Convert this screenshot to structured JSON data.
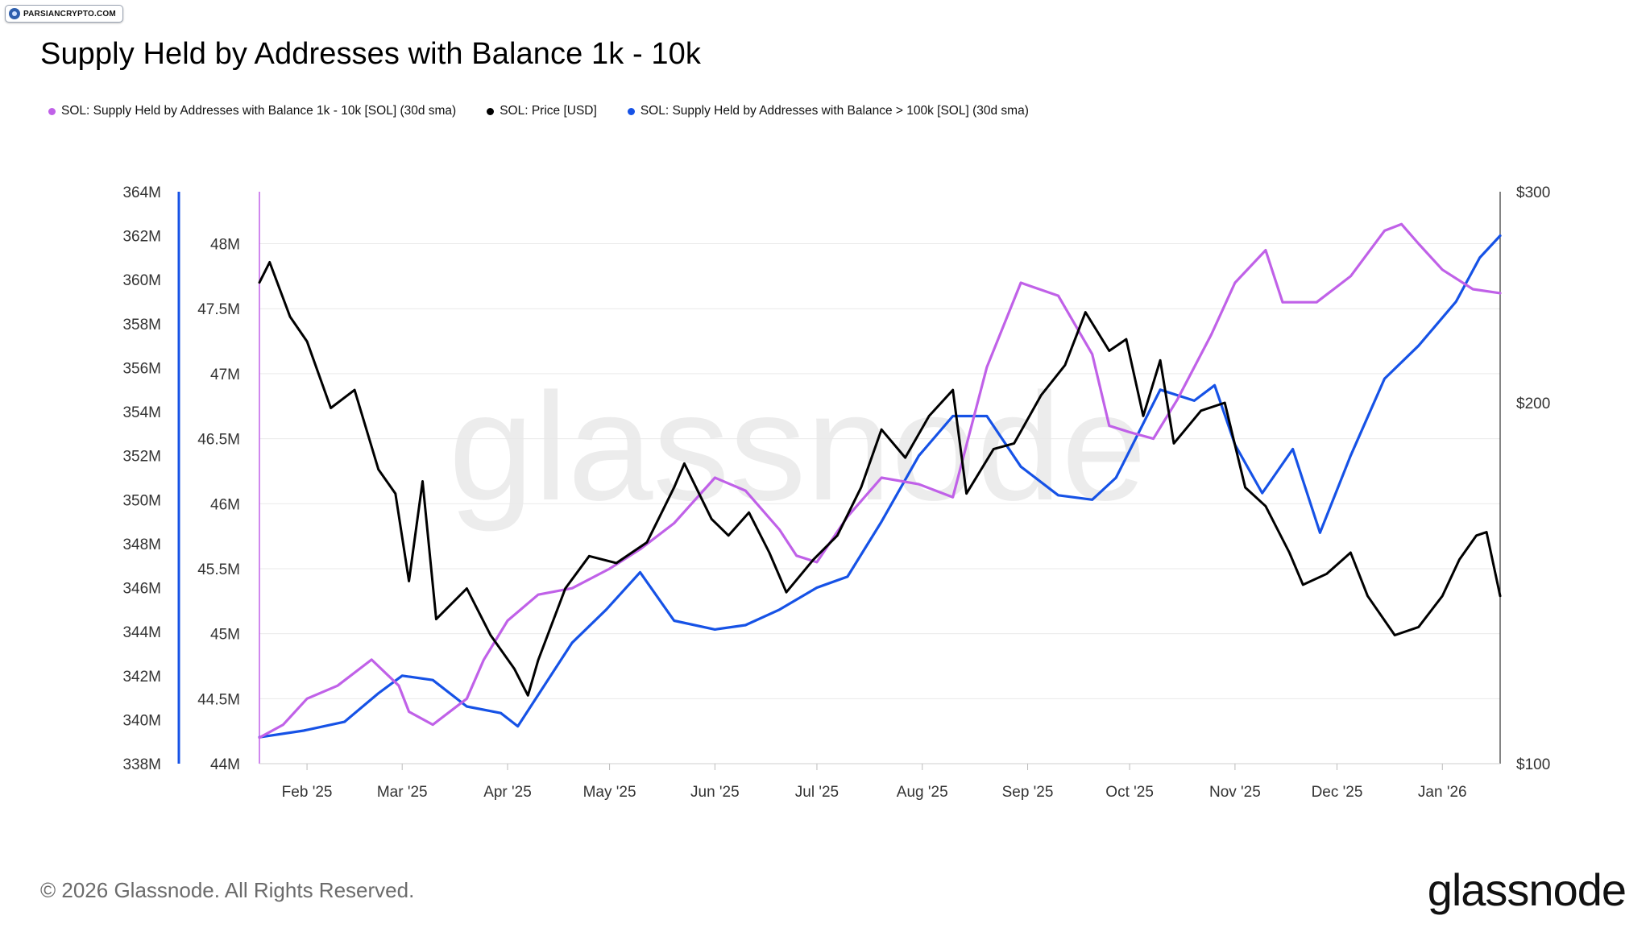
{
  "badge": {
    "text": "PARSIANCRYPTO.COM"
  },
  "title": "Supply Held by Addresses with Balance 1k - 10k",
  "legend": [
    {
      "label": "SOL: Supply Held by Addresses with Balance 1k - 10k [SOL] (30d sma)",
      "color": "#c061e8"
    },
    {
      "label": "SOL: Price [USD]",
      "color": "#000000"
    },
    {
      "label": "SOL: Supply Held by Addresses with Balance > 100k [SOL] (30d sma)",
      "color": "#1652e6"
    }
  ],
  "watermark": "glassnode",
  "footer": "© 2026 Glassnode. All Rights Reserved.",
  "brand": "glassnode",
  "chart_data": {
    "type": "line",
    "title": "Supply Held by Addresses with Balance 1k - 10k",
    "x_tick_labels": [
      "Feb '25",
      "Mar '25",
      "Apr '25",
      "May '25",
      "Jun '25",
      "Jul '25",
      "Aug '25",
      "Sep '25",
      "Oct '25",
      "Nov '25",
      "Dec '25",
      "Jan '26"
    ],
    "axes": {
      "left_outer": {
        "series": "SOL: Supply Held by Addresses with Balance > 100k [SOL] (30d sma)",
        "range": [
          338,
          364
        ],
        "ticks": [
          "338M",
          "340M",
          "342M",
          "344M",
          "346M",
          "348M",
          "350M",
          "352M",
          "354M",
          "356M",
          "358M",
          "360M",
          "362M",
          "364M"
        ],
        "color": "#1652e6"
      },
      "left_inner": {
        "series": "SOL: Supply Held by Addresses with Balance 1k - 10k [SOL] (30d sma)",
        "range": [
          44,
          48.4
        ],
        "ticks": [
          "44M",
          "44.5M",
          "45M",
          "45.5M",
          "46M",
          "46.5M",
          "47M",
          "47.5M",
          "48M"
        ],
        "color": "#c061e8"
      },
      "right": {
        "series": "SOL: Price [USD]",
        "scale": "log",
        "range": [
          100,
          300
        ],
        "ticks": [
          "$100",
          "$200",
          "$300"
        ]
      }
    },
    "grid": "horizontal",
    "series": [
      {
        "name": "SOL: Supply Held by Addresses with Balance 1k - 10k [SOL] (30d sma)",
        "axis": "left_inner",
        "color": "#c061e8",
        "unit": "M SOL",
        "x": [
          "2025-01-18",
          "2025-01-25",
          "2025-02-01",
          "2025-02-10",
          "2025-02-20",
          "2025-02-28",
          "2025-03-03",
          "2025-03-10",
          "2025-03-20",
          "2025-03-25",
          "2025-04-01",
          "2025-04-10",
          "2025-04-20",
          "2025-05-01",
          "2025-05-10",
          "2025-05-20",
          "2025-06-01",
          "2025-06-10",
          "2025-06-20",
          "2025-06-25",
          "2025-07-01",
          "2025-07-10",
          "2025-07-20",
          "2025-07-31",
          "2025-08-10",
          "2025-08-20",
          "2025-08-30",
          "2025-09-10",
          "2025-09-20",
          "2025-09-25",
          "2025-10-01",
          "2025-10-08",
          "2025-10-15",
          "2025-10-25",
          "2025-11-01",
          "2025-11-10",
          "2025-11-15",
          "2025-11-25",
          "2025-12-05",
          "2025-12-15",
          "2025-12-20",
          "2025-12-25",
          "2026-01-01",
          "2026-01-10",
          "2026-01-18"
        ],
        "values": [
          44.2,
          44.3,
          44.5,
          44.6,
          44.8,
          44.6,
          44.4,
          44.3,
          44.5,
          44.8,
          45.1,
          45.3,
          45.35,
          45.5,
          45.65,
          45.85,
          46.2,
          46.1,
          45.8,
          45.6,
          45.55,
          45.9,
          46.2,
          46.15,
          46.05,
          47.05,
          47.7,
          47.6,
          47.15,
          46.6,
          46.55,
          46.5,
          46.8,
          47.3,
          47.7,
          47.95,
          47.55,
          47.55,
          47.75,
          48.1,
          48.15,
          48.0,
          47.8,
          47.65,
          47.62
        ]
      },
      {
        "name": "SOL: Price [USD]",
        "axis": "right",
        "color": "#000000",
        "unit": "USD",
        "x": [
          "2025-01-18",
          "2025-01-21",
          "2025-01-27",
          "2025-02-01",
          "2025-02-08",
          "2025-02-15",
          "2025-02-22",
          "2025-02-27",
          "2025-03-03",
          "2025-03-07",
          "2025-03-11",
          "2025-03-20",
          "2025-03-27",
          "2025-04-03",
          "2025-04-07",
          "2025-04-10",
          "2025-04-18",
          "2025-04-25",
          "2025-05-03",
          "2025-05-12",
          "2025-05-20",
          "2025-05-23",
          "2025-05-31",
          "2025-06-05",
          "2025-06-11",
          "2025-06-17",
          "2025-06-22",
          "2025-06-30",
          "2025-07-07",
          "2025-07-14",
          "2025-07-20",
          "2025-07-27",
          "2025-08-03",
          "2025-08-10",
          "2025-08-14",
          "2025-08-22",
          "2025-08-28",
          "2025-09-05",
          "2025-09-12",
          "2025-09-18",
          "2025-09-25",
          "2025-09-30",
          "2025-10-05",
          "2025-10-10",
          "2025-10-14",
          "2025-10-22",
          "2025-10-29",
          "2025-11-04",
          "2025-11-10",
          "2025-11-17",
          "2025-11-21",
          "2025-11-28",
          "2025-12-05",
          "2025-12-10",
          "2025-12-18",
          "2025-12-25",
          "2026-01-01",
          "2026-01-06",
          "2026-01-11",
          "2026-01-14",
          "2026-01-18"
        ],
        "values": [
          252,
          262,
          236,
          225,
          198,
          205,
          176,
          168,
          142,
          172,
          132,
          140,
          128,
          120,
          114,
          122,
          140,
          149,
          147,
          153,
          170,
          178,
          160,
          155,
          162,
          150,
          139,
          148,
          155,
          170,
          190,
          180,
          195,
          205,
          168,
          183,
          185,
          203,
          215,
          238,
          221,
          226,
          195,
          217,
          185,
          197,
          200,
          170,
          164,
          150,
          141,
          144,
          150,
          138,
          128,
          130,
          138,
          148,
          155,
          156,
          138
        ]
      },
      {
        "name": "SOL: Supply Held by Addresses with Balance > 100k [SOL] (30d sma)",
        "axis": "left_outer",
        "color": "#1652e6",
        "unit": "M SOL",
        "x": [
          "2025-01-18",
          "2025-01-31",
          "2025-02-12",
          "2025-02-22",
          "2025-03-01",
          "2025-03-10",
          "2025-03-20",
          "2025-03-30",
          "2025-04-04",
          "2025-04-20",
          "2025-04-30",
          "2025-05-10",
          "2025-05-20",
          "2025-06-01",
          "2025-06-10",
          "2025-06-20",
          "2025-07-01",
          "2025-07-10",
          "2025-07-20",
          "2025-07-31",
          "2025-08-10",
          "2025-08-20",
          "2025-08-30",
          "2025-09-10",
          "2025-09-20",
          "2025-09-27",
          "2025-10-10",
          "2025-10-20",
          "2025-10-26",
          "2025-11-01",
          "2025-11-09",
          "2025-11-18",
          "2025-11-26",
          "2025-12-05",
          "2025-12-15",
          "2025-12-25",
          "2026-01-05",
          "2026-01-12",
          "2026-01-18"
        ],
        "values": [
          339.2,
          339.5,
          339.9,
          341.2,
          342.0,
          341.8,
          340.6,
          340.3,
          339.7,
          343.5,
          345.0,
          346.7,
          344.5,
          344.1,
          344.3,
          345.0,
          346.0,
          346.5,
          349.0,
          352.0,
          353.8,
          353.8,
          351.5,
          350.2,
          350.0,
          351.0,
          355.0,
          354.5,
          355.2,
          352.5,
          350.3,
          352.3,
          348.5,
          352.0,
          355.5,
          357.0,
          359.0,
          361.0,
          362.0
        ]
      }
    ]
  }
}
